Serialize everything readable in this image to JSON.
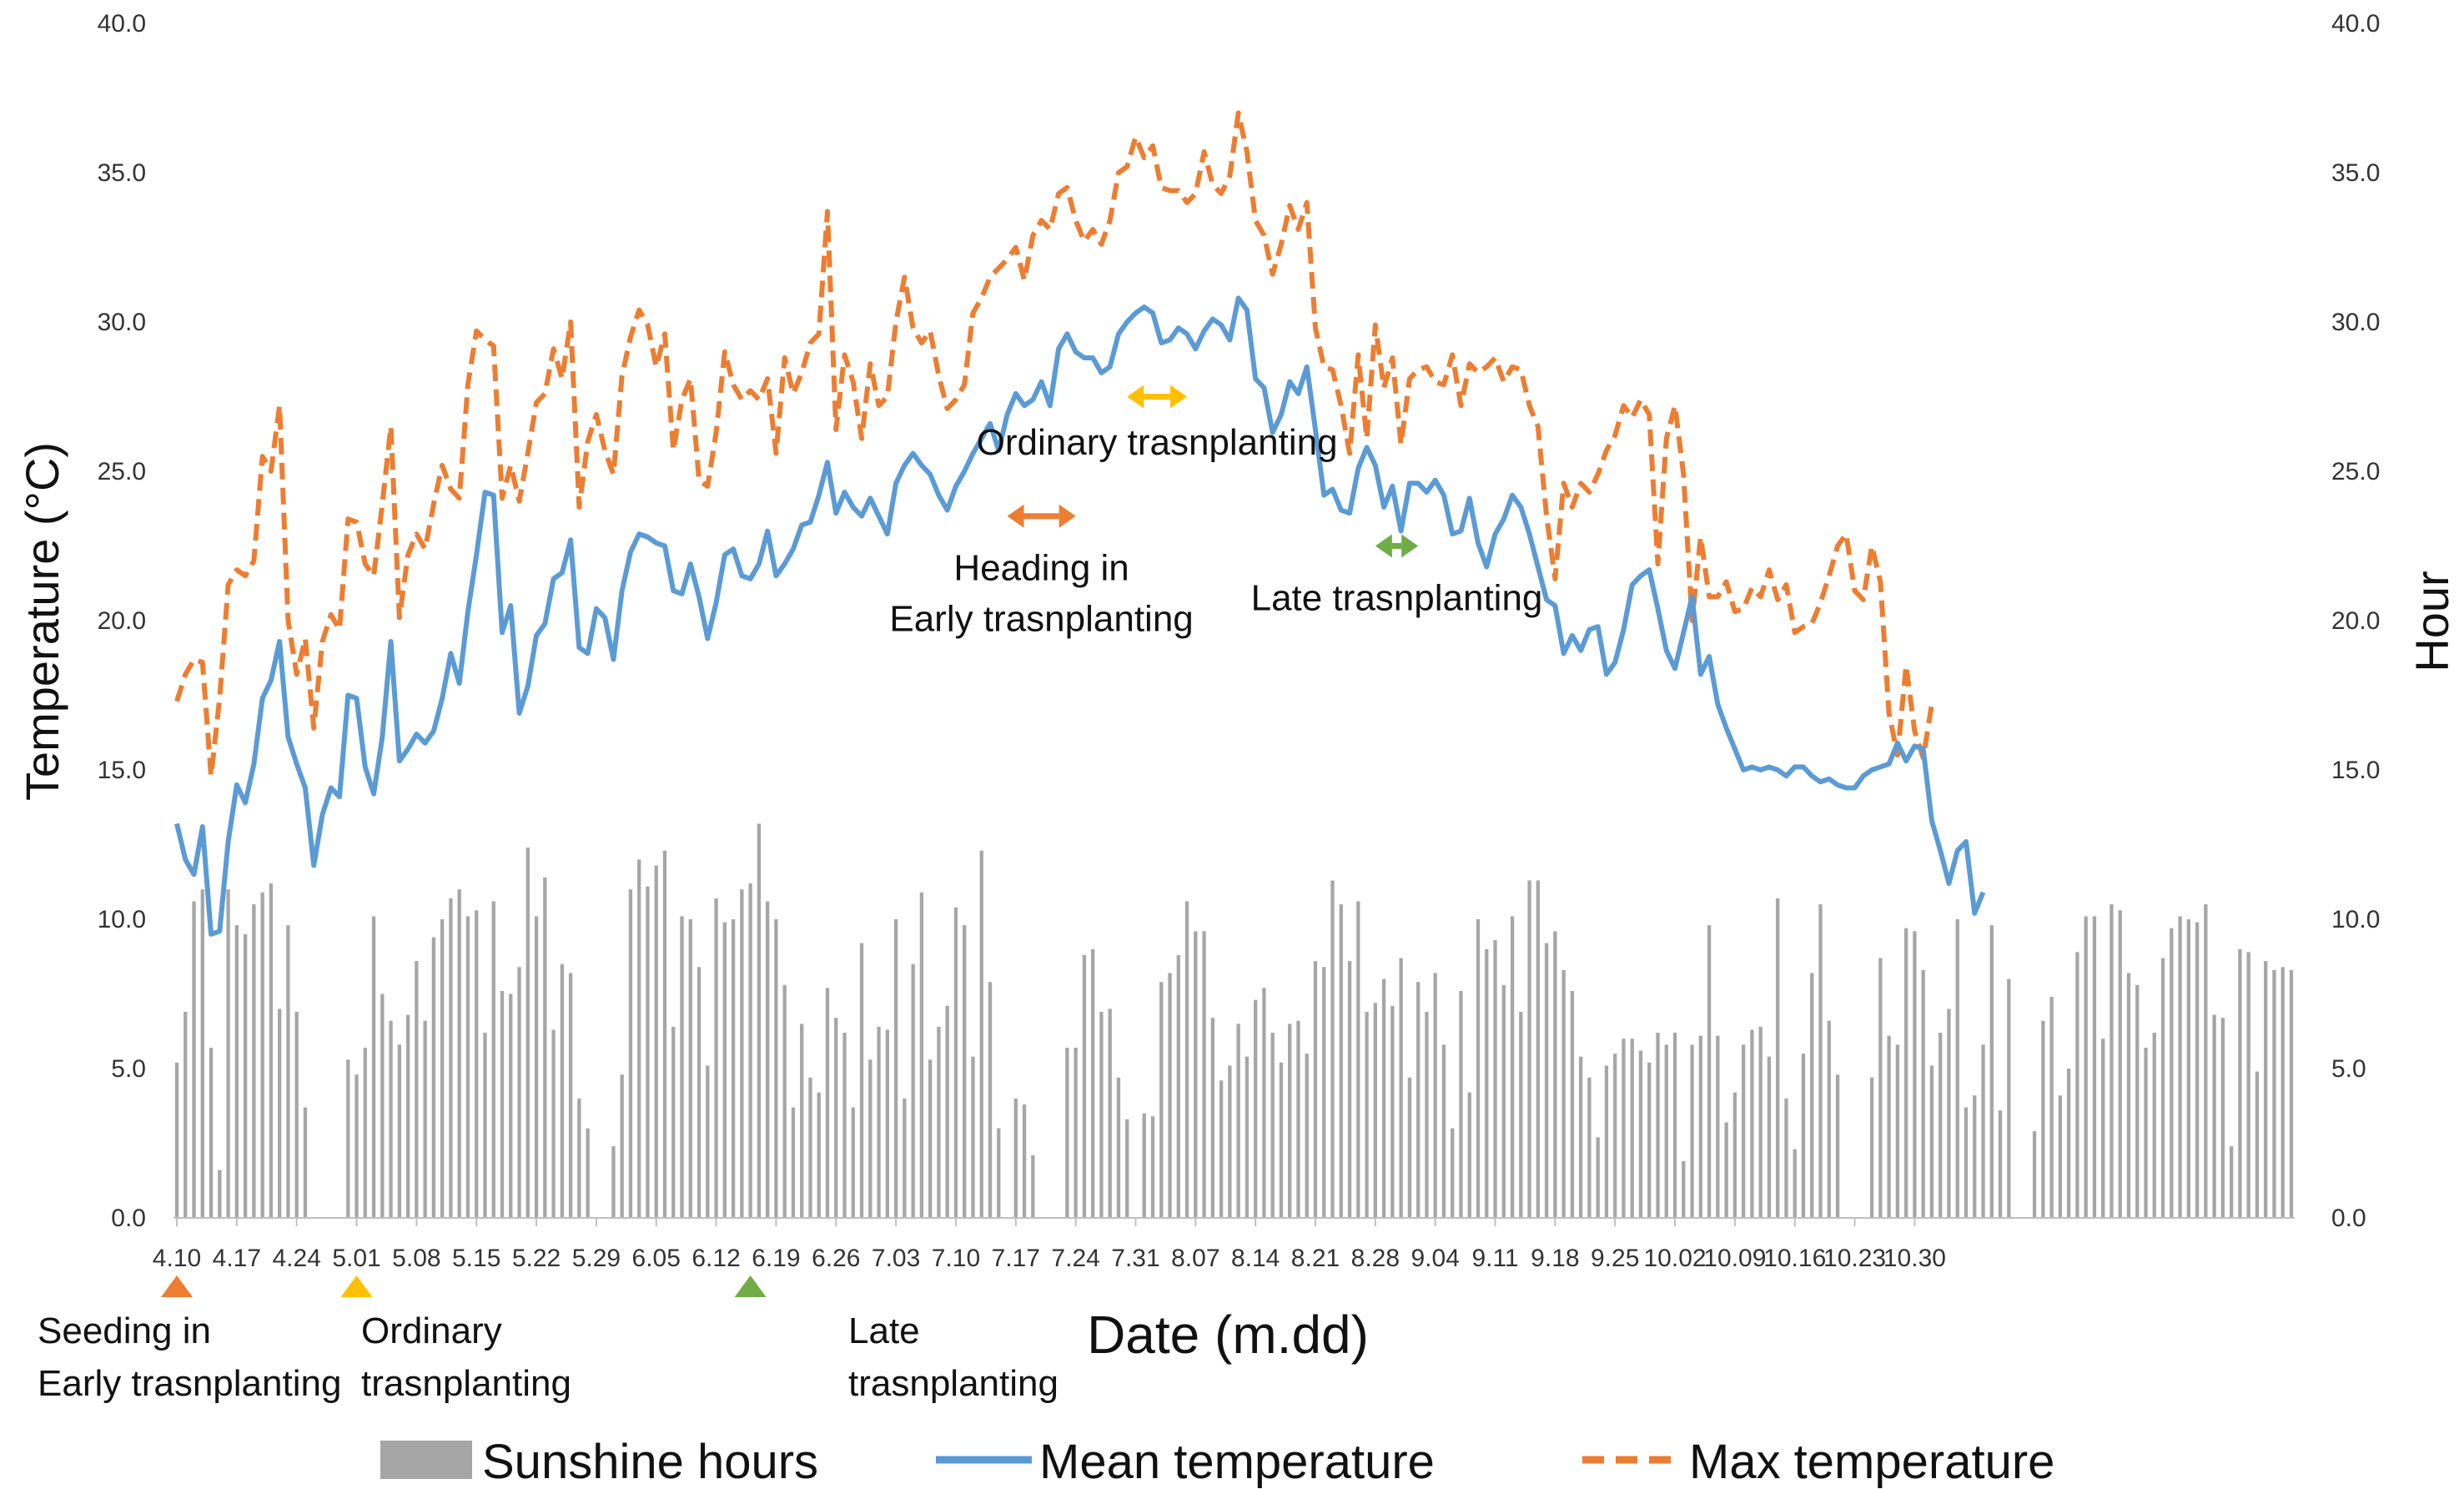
{
  "chart_data": {
    "type": "line",
    "title": "",
    "xlabel": "Date (m.dd)",
    "ylabel_left": "Temperature (°C)",
    "ylabel_right": "Hour",
    "ylim": [
      0,
      40
    ],
    "y_ticks": [
      "0.0",
      "5.0",
      "10.0",
      "15.0",
      "20.0",
      "25.0",
      "30.0",
      "35.0",
      "40.0"
    ],
    "x_ticks": [
      "4.10",
      "4.17",
      "4.24",
      "5.01",
      "5.08",
      "5.15",
      "5.22",
      "5.29",
      "6.05",
      "6.12",
      "6.19",
      "6.26",
      "7.03",
      "7.10",
      "7.17",
      "7.24",
      "7.31",
      "8.07",
      "8.14",
      "8.21",
      "8.28",
      "9.04",
      "9.11",
      "9.18",
      "9.25",
      "10.02",
      "10.09",
      "10.16",
      "10.23",
      "10.30"
    ],
    "grid": false,
    "legend_position": "bottom",
    "colors": {
      "sunshine": "#a6a6a6",
      "mean": "#5b9bd5",
      "max": "#ed7d31",
      "orange_marker": "#ed7d31",
      "yellow_marker": "#ffc000",
      "green_marker": "#70ad47"
    },
    "series": [
      {
        "name": "Sunshine hours",
        "kind": "bar",
        "values": [
          5.2,
          6.9,
          10.6,
          11.0,
          5.7,
          1.6,
          11.0,
          9.8,
          9.5,
          10.5,
          10.9,
          11.2,
          7.0,
          9.8,
          6.9,
          3.7,
          0.0,
          0.0,
          0.0,
          0.0,
          5.3,
          4.8,
          5.7,
          10.1,
          7.5,
          6.6,
          5.8,
          6.8,
          8.6,
          6.6,
          9.4,
          10.0,
          10.7,
          11.0,
          10.1,
          10.3,
          6.2,
          10.6,
          7.6,
          7.5,
          8.4,
          12.4,
          10.1,
          11.4,
          6.3,
          8.5,
          8.2,
          4.0,
          3.0,
          0.0,
          0.0,
          2.4,
          4.8,
          11.0,
          12.0,
          11.1,
          11.8,
          12.3,
          6.4,
          10.1,
          10.0,
          8.4,
          5.1,
          10.7,
          9.9,
          10.0,
          11.0,
          11.2,
          13.2,
          10.6,
          10.0,
          7.8,
          3.7,
          6.5,
          4.7,
          4.2,
          7.7,
          6.7,
          6.2,
          3.7,
          9.2,
          5.3,
          6.4,
          6.3,
          10.0,
          4.0,
          8.5,
          10.9,
          5.3,
          6.4,
          7.1,
          10.4,
          9.8,
          5.4,
          12.3,
          7.9,
          3.0,
          0.0,
          4.0,
          3.8,
          2.1,
          0.0,
          0.0,
          0.0,
          5.7,
          5.7,
          8.8,
          9.0,
          6.9,
          7.0,
          4.7,
          3.3,
          0.0,
          3.5,
          3.4,
          7.9,
          8.2,
          8.8,
          10.6,
          9.6,
          9.6,
          6.7,
          4.6,
          5.1,
          6.5,
          5.4,
          7.3,
          7.7,
          6.2,
          5.2,
          6.5,
          6.6,
          5.5,
          8.6,
          8.4,
          11.3,
          10.5,
          8.6,
          10.6,
          6.9,
          7.2,
          8.0,
          7.1,
          8.7,
          4.7,
          7.9,
          6.9,
          8.2,
          5.8,
          3.0,
          7.6,
          4.2,
          10.0,
          9.0,
          9.3,
          7.8,
          10.1,
          6.9,
          11.3,
          11.3,
          9.2,
          9.6,
          8.3,
          7.6,
          5.4,
          4.7,
          2.7,
          5.1,
          5.5,
          6.0,
          6.0,
          5.6,
          5.2,
          6.2,
          5.8,
          6.2,
          1.9,
          5.8,
          6.1,
          9.8,
          6.1,
          3.2,
          4.2,
          5.8,
          6.3,
          6.4,
          5.4,
          10.7,
          4.0,
          2.3,
          5.5,
          8.2,
          10.5,
          6.6,
          4.8,
          0.0,
          0.0,
          0.0,
          4.7,
          8.7,
          6.1,
          5.8,
          9.7,
          9.6,
          8.3,
          5.1,
          6.2,
          7.0,
          10.0,
          3.7,
          4.1,
          5.8,
          9.8,
          3.6,
          8.0,
          0.0,
          0.0,
          2.9,
          6.6,
          7.4,
          4.1,
          5.0,
          8.9,
          10.1,
          10.1,
          6.0,
          10.5,
          10.3,
          8.2,
          7.8,
          5.7,
          6.2,
          8.7,
          9.7,
          10.1,
          10.0,
          9.9,
          10.5,
          6.8,
          6.7,
          2.4,
          9.0,
          8.9,
          4.9,
          8.6,
          8.3,
          8.4,
          8.3
        ]
      },
      {
        "name": "Mean temperature",
        "kind": "line",
        "values": [
          13.2,
          12.0,
          11.5,
          13.1,
          9.5,
          9.6,
          12.6,
          14.5,
          13.9,
          15.2,
          17.4,
          18.0,
          19.3,
          16.1,
          15.2,
          14.4,
          11.8,
          13.5,
          14.4,
          14.1,
          17.5,
          17.4,
          15.1,
          14.2,
          16.1,
          19.3,
          15.3,
          15.7,
          16.2,
          15.9,
          16.3,
          17.4,
          18.9,
          17.9,
          20.3,
          22.2,
          24.3,
          24.2,
          19.6,
          20.5,
          16.9,
          17.8,
          19.5,
          19.9,
          21.4,
          21.6,
          22.7,
          19.1,
          18.9,
          20.4,
          20.1,
          18.7,
          21.0,
          22.3,
          22.9,
          22.8,
          22.6,
          22.5,
          21.0,
          20.9,
          21.9,
          20.8,
          19.4,
          20.6,
          22.2,
          22.4,
          21.5,
          21.4,
          21.9,
          23.0,
          21.5,
          21.9,
          22.4,
          23.2,
          23.3,
          24.2,
          25.3,
          23.6,
          24.3,
          23.8,
          23.5,
          24.1,
          23.5,
          22.9,
          24.6,
          25.2,
          25.6,
          25.2,
          24.9,
          24.2,
          23.7,
          24.5,
          25.0,
          25.6,
          26.1,
          26.6,
          25.7,
          26.9,
          27.6,
          27.2,
          27.4,
          28.0,
          27.2,
          29.1,
          29.6,
          29.0,
          28.8,
          28.8,
          28.3,
          28.5,
          29.6,
          30.0,
          30.3,
          30.5,
          30.3,
          29.3,
          29.4,
          29.8,
          29.6,
          29.1,
          29.7,
          30.1,
          29.9,
          29.4,
          30.8,
          30.4,
          28.1,
          27.8,
          26.3,
          26.9,
          28.0,
          27.6,
          28.5,
          26.4,
          24.2,
          24.4,
          23.7,
          23.6,
          25.1,
          25.8,
          25.2,
          23.8,
          24.5,
          23.0,
          24.6,
          24.6,
          24.3,
          24.7,
          24.2,
          22.9,
          23.0,
          24.1,
          22.6,
          21.8,
          22.9,
          23.4,
          24.2,
          23.8,
          22.9,
          21.8,
          20.7,
          20.5,
          18.9,
          19.5,
          19.0,
          19.7,
          19.8,
          18.2,
          18.6,
          19.7,
          21.2,
          21.5,
          21.7,
          20.4,
          19.0,
          18.4,
          19.6,
          20.8,
          18.2,
          18.8,
          17.2,
          16.4,
          15.7,
          15.0,
          15.1,
          15.0,
          15.1,
          15.0,
          14.8,
          15.1,
          15.1,
          14.8,
          14.6,
          14.7,
          14.5,
          14.4,
          14.4,
          14.8,
          15.0,
          15.1,
          15.2,
          15.9,
          15.3,
          15.8,
          15.7,
          13.3,
          12.3,
          11.2,
          12.3,
          12.6,
          10.2,
          10.9
        ]
      },
      {
        "name": "Max temperature",
        "kind": "line",
        "values": [
          17.3,
          18.2,
          18.7,
          18.6,
          14.8,
          17.4,
          21.2,
          21.7,
          21.5,
          22.0,
          25.5,
          25.0,
          27.2,
          20.0,
          18.2,
          19.4,
          16.4,
          19.3,
          20.2,
          19.7,
          23.4,
          23.3,
          21.9,
          21.5,
          23.9,
          26.5,
          20.1,
          22.2,
          22.9,
          22.4,
          23.9,
          25.2,
          24.4,
          24.1,
          27.9,
          29.7,
          29.4,
          29.2,
          24.1,
          25.2,
          24.0,
          25.6,
          27.3,
          27.6,
          29.1,
          28.1,
          30.0,
          23.8,
          26.0,
          26.9,
          25.7,
          24.9,
          28.2,
          29.5,
          30.4,
          29.9,
          28.5,
          29.6,
          25.7,
          27.4,
          28.1,
          24.7,
          24.5,
          26.3,
          29.0,
          27.9,
          27.4,
          27.7,
          27.4,
          28.1,
          25.6,
          28.8,
          27.6,
          28.3,
          29.3,
          29.6,
          33.7,
          26.4,
          28.9,
          28.0,
          26.1,
          28.6,
          27.2,
          27.5,
          30.0,
          31.5,
          29.8,
          29.3,
          29.7,
          28.2,
          27.1,
          27.4,
          27.9,
          30.3,
          30.8,
          31.5,
          31.8,
          32.1,
          32.5,
          31.4,
          32.9,
          33.4,
          33.1,
          34.3,
          34.5,
          33.4,
          32.7,
          33.1,
          32.6,
          33.4,
          35.0,
          35.2,
          36.2,
          35.5,
          35.9,
          34.5,
          34.4,
          34.4,
          34.0,
          34.3,
          35.7,
          34.6,
          34.3,
          34.9,
          37.0,
          35.7,
          33.4,
          32.9,
          31.6,
          32.6,
          33.9,
          33.1,
          34.0,
          29.8,
          28.5,
          28.4,
          27.2,
          25.6,
          28.9,
          26.1,
          29.9,
          27.8,
          28.8,
          25.9,
          28.1,
          28.4,
          28.5,
          28.0,
          27.9,
          28.9,
          27.2,
          28.6,
          28.3,
          28.5,
          28.8,
          28.0,
          28.5,
          28.4,
          27.2,
          26.5,
          23.5,
          21.4,
          24.6,
          23.8,
          24.6,
          24.3,
          24.9,
          25.7,
          26.2,
          27.2,
          26.8,
          27.4,
          26.9,
          21.9,
          26.1,
          27.2,
          24.9,
          20.0,
          22.8,
          20.8,
          20.8,
          21.3,
          20.3,
          20.4,
          21.1,
          20.8,
          21.7,
          20.7,
          21.2,
          19.6,
          19.8,
          19.9,
          20.6,
          21.5,
          22.5,
          22.9,
          21.0,
          20.7,
          22.5,
          21.3,
          16.9,
          15.5,
          18.5,
          16.3,
          15.4,
          17.2
        ]
      }
    ],
    "annotations": [
      {
        "label": "Ordinary trasnplanting",
        "arrow_color": "#ffc000",
        "arrow_x_start": 111,
        "arrow_x_end": 118,
        "arrow_y": 27.5,
        "text_y": 26.0,
        "text_center_x": 114.5
      },
      {
        "label": "Heading in",
        "label2": "Early trasnplanting",
        "arrow_color": "#ed7d31",
        "arrow_x_start": 97,
        "arrow_x_end": 105,
        "arrow_y": 23.5,
        "text_y": 21.8,
        "text_y2": 20.1,
        "text_center_x": 101
      },
      {
        "label": "Late trasnplanting",
        "arrow_color": "#70ad47",
        "arrow_x_start": 140,
        "arrow_x_end": 145,
        "arrow_y": 22.5,
        "text_y": 20.8,
        "text_center_x": 142.5
      }
    ],
    "timeline_markers": [
      {
        "line1": "Seeding in",
        "line2": "Early trasnplanting",
        "color": "#ed7d31",
        "day_index": 0
      },
      {
        "line1": "Ordinary",
        "line2": "trasnplanting",
        "color": "#ffc000",
        "day_index": 21
      },
      {
        "line1": "Late",
        "line2": "trasnplanting",
        "color": "#70ad47",
        "day_index": 67
      }
    ]
  }
}
